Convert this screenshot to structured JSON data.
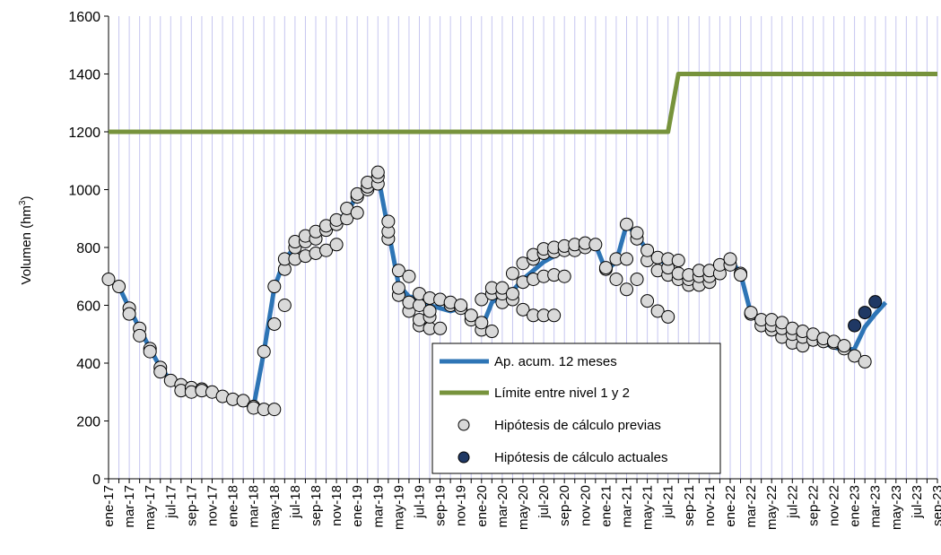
{
  "chart_data": {
    "type": "line",
    "ylabel": "Volumen (hm³)",
    "ylabel_parts": {
      "main": "Volumen (hm",
      "sup": "3",
      "close": ")"
    },
    "ylim": [
      0,
      1600
    ],
    "yticks": [
      0,
      200,
      400,
      600,
      800,
      1000,
      1200,
      1400,
      1600
    ],
    "grid": {
      "vertical": "monthly",
      "horizontal": false
    },
    "legend_position": "center-bottom",
    "months": [
      "ene-17",
      "feb-17",
      "mar-17",
      "abr-17",
      "may-17",
      "jun-17",
      "jul-17",
      "ago-17",
      "sep-17",
      "oct-17",
      "nov-17",
      "dic-17",
      "ene-18",
      "feb-18",
      "mar-18",
      "abr-18",
      "may-18",
      "jun-18",
      "jul-18",
      "ago-18",
      "sep-18",
      "oct-18",
      "nov-18",
      "dic-18",
      "ene-19",
      "feb-19",
      "mar-19",
      "abr-19",
      "may-19",
      "jun-19",
      "jul-19",
      "ago-19",
      "sep-19",
      "oct-19",
      "nov-19",
      "dic-19",
      "ene-20",
      "feb-20",
      "mar-20",
      "abr-20",
      "may-20",
      "jun-20",
      "jul-20",
      "ago-20",
      "sep-20",
      "oct-20",
      "nov-20",
      "dic-20",
      "ene-21",
      "feb-21",
      "mar-21",
      "abr-21",
      "may-21",
      "jun-21",
      "jul-21",
      "ago-21",
      "sep-21",
      "oct-21",
      "nov-21",
      "dic-21",
      "ene-22",
      "feb-22",
      "mar-22",
      "abr-22",
      "may-22",
      "jun-22",
      "jul-22",
      "ago-22",
      "sep-22",
      "oct-22",
      "nov-22",
      "dic-22",
      "ene-23",
      "feb-23",
      "mar-23",
      "abr-23",
      "may-23",
      "jun-23",
      "jul-23",
      "ago-23",
      "sep-23"
    ],
    "x_tick_labels": [
      "ene-17",
      "mar-17",
      "may-17",
      "jul-17",
      "sep-17",
      "nov-17",
      "ene-18",
      "mar-18",
      "may-18",
      "jul-18",
      "sep-18",
      "nov-18",
      "ene-19",
      "mar-19",
      "may-19",
      "jul-19",
      "sep-19",
      "nov-19",
      "ene-20",
      "mar-20",
      "may-20",
      "jul-20",
      "sep-20",
      "nov-20",
      "ene-21",
      "mar-21",
      "may-21",
      "jul-21",
      "sep-21",
      "nov-21",
      "ene-22",
      "mar-22",
      "may-22",
      "jul-22",
      "sep-22",
      "nov-22",
      "ene-23",
      "mar-23",
      "may-23",
      "jul-23",
      "sep-23"
    ],
    "series": [
      {
        "name": "Ap. acum. 12 meses",
        "kind": "line",
        "color": "#2E75B6",
        "x": [
          "ene-17",
          "feb-17",
          "mar-17",
          "abr-17",
          "may-17",
          "jun-17",
          "jul-17",
          "ago-17",
          "sep-17",
          "oct-17",
          "nov-17",
          "dic-17",
          "ene-18",
          "feb-18",
          "mar-18",
          "abr-18",
          "may-18",
          "jun-18",
          "jul-18",
          "ago-18",
          "sep-18",
          "oct-18",
          "nov-18",
          "dic-18",
          "ene-19",
          "feb-19",
          "mar-19",
          "abr-19",
          "may-19",
          "jun-19",
          "jul-19",
          "ago-19",
          "sep-19",
          "oct-19",
          "nov-19",
          "dic-19",
          "ene-20",
          "feb-20",
          "mar-20",
          "abr-20",
          "may-20",
          "jun-20",
          "jul-20",
          "ago-20",
          "sep-20",
          "oct-20",
          "nov-20",
          "dic-20",
          "ene-21",
          "feb-21",
          "mar-21",
          "abr-21",
          "may-21",
          "jun-21",
          "jul-21",
          "ago-21",
          "sep-21",
          "oct-21",
          "nov-21",
          "dic-21",
          "ene-22",
          "feb-22",
          "mar-22",
          "abr-22",
          "may-22",
          "jun-22",
          "jul-22",
          "ago-22",
          "sep-22",
          "oct-22",
          "nov-22",
          "dic-22",
          "ene-23",
          "feb-23",
          "mar-23",
          "abr-23"
        ],
        "values": [
          690,
          665,
          590,
          520,
          450,
          385,
          340,
          320,
          310,
          305,
          300,
          285,
          270,
          260,
          250,
          440,
          660,
          760,
          800,
          830,
          850,
          870,
          890,
          920,
          980,
          1010,
          1050,
          860,
          670,
          630,
          625,
          600,
          590,
          580,
          590,
          560,
          520,
          610,
          640,
          650,
          690,
          720,
          750,
          770,
          790,
          800,
          810,
          810,
          720,
          750,
          880,
          840,
          790,
          760,
          740,
          700,
          690,
          700,
          720,
          730,
          760,
          710,
          570,
          540,
          520,
          510,
          500,
          495,
          480,
          470,
          455,
          445,
          450,
          525,
          570,
          610
        ]
      },
      {
        "name": "Límite entre nivel 1 y 2",
        "kind": "line",
        "color": "#77933C",
        "x": [
          "ene-17",
          "jul-21",
          "ago-21",
          "sep-23"
        ],
        "values": [
          1200,
          1200,
          1400,
          1400
        ]
      },
      {
        "name": "Hipótesis de cálculo previas",
        "kind": "markers",
        "color": "#D9D9D9",
        "points": [
          [
            "ene-17",
            690
          ],
          [
            "feb-17",
            665
          ],
          [
            "mar-17",
            590
          ],
          [
            "mar-17",
            570
          ],
          [
            "abr-17",
            520
          ],
          [
            "abr-17",
            495
          ],
          [
            "may-17",
            450
          ],
          [
            "may-17",
            440
          ],
          [
            "jun-17",
            385
          ],
          [
            "jun-17",
            370
          ],
          [
            "jul-17",
            340
          ],
          [
            "ago-17",
            325
          ],
          [
            "ago-17",
            305
          ],
          [
            "sep-17",
            315
          ],
          [
            "sep-17",
            300
          ],
          [
            "oct-17",
            310
          ],
          [
            "oct-17",
            305
          ],
          [
            "nov-17",
            300
          ],
          [
            "dic-17",
            285
          ],
          [
            "ene-18",
            275
          ],
          [
            "feb-18",
            270
          ],
          [
            "mar-18",
            250
          ],
          [
            "mar-18",
            245
          ],
          [
            "abr-18",
            240
          ],
          [
            "abr-18",
            440
          ],
          [
            "may-18",
            240
          ],
          [
            "may-18",
            535
          ],
          [
            "may-18",
            665
          ],
          [
            "jun-18",
            600
          ],
          [
            "jun-18",
            725
          ],
          [
            "jun-18",
            760
          ],
          [
            "jul-18",
            760
          ],
          [
            "jul-18",
            800
          ],
          [
            "jul-18",
            820
          ],
          [
            "ago-18",
            770
          ],
          [
            "ago-18",
            820
          ],
          [
            "ago-18",
            840
          ],
          [
            "sep-18",
            780
          ],
          [
            "sep-18",
            830
          ],
          [
            "sep-18",
            855
          ],
          [
            "oct-18",
            790
          ],
          [
            "oct-18",
            860
          ],
          [
            "oct-18",
            875
          ],
          [
            "nov-18",
            810
          ],
          [
            "nov-18",
            880
          ],
          [
            "nov-18",
            895
          ],
          [
            "dic-18",
            900
          ],
          [
            "dic-18",
            935
          ],
          [
            "ene-19",
            920
          ],
          [
            "ene-19",
            975
          ],
          [
            "ene-19",
            985
          ],
          [
            "feb-19",
            1000
          ],
          [
            "feb-19",
            1010
          ],
          [
            "feb-19",
            1025
          ],
          [
            "mar-19",
            1020
          ],
          [
            "mar-19",
            1045
          ],
          [
            "mar-19",
            1060
          ],
          [
            "abr-19",
            830
          ],
          [
            "abr-19",
            855
          ],
          [
            "abr-19",
            890
          ],
          [
            "may-19",
            635
          ],
          [
            "may-19",
            660
          ],
          [
            "may-19",
            720
          ],
          [
            "jun-19",
            580
          ],
          [
            "jun-19",
            610
          ],
          [
            "jun-19",
            700
          ],
          [
            "jul-19",
            530
          ],
          [
            "jul-19",
            550
          ],
          [
            "jul-19",
            600
          ],
          [
            "jul-19",
            640
          ],
          [
            "ago-19",
            520
          ],
          [
            "ago-19",
            560
          ],
          [
            "ago-19",
            580
          ],
          [
            "ago-19",
            625
          ],
          [
            "sep-19",
            520
          ],
          [
            "sep-19",
            620
          ],
          [
            "oct-19",
            600
          ],
          [
            "oct-19",
            610
          ],
          [
            "nov-19",
            590
          ],
          [
            "nov-19",
            600
          ],
          [
            "dic-19",
            550
          ],
          [
            "dic-19",
            565
          ],
          [
            "ene-20",
            515
          ],
          [
            "ene-20",
            540
          ],
          [
            "ene-20",
            620
          ],
          [
            "feb-20",
            510
          ],
          [
            "feb-20",
            640
          ],
          [
            "feb-20",
            660
          ],
          [
            "mar-20",
            610
          ],
          [
            "mar-20",
            640
          ],
          [
            "mar-20",
            660
          ],
          [
            "abr-20",
            620
          ],
          [
            "abr-20",
            640
          ],
          [
            "abr-20",
            710
          ],
          [
            "may-20",
            585
          ],
          [
            "may-20",
            680
          ],
          [
            "may-20",
            745
          ],
          [
            "jun-20",
            565
          ],
          [
            "jun-20",
            690
          ],
          [
            "jun-20",
            760
          ],
          [
            "jun-20",
            775
          ],
          [
            "jul-20",
            565
          ],
          [
            "jul-20",
            700
          ],
          [
            "jul-20",
            780
          ],
          [
            "jul-20",
            795
          ],
          [
            "ago-20",
            565
          ],
          [
            "ago-20",
            705
          ],
          [
            "ago-20",
            785
          ],
          [
            "ago-20",
            800
          ],
          [
            "sep-20",
            700
          ],
          [
            "sep-20",
            790
          ],
          [
            "sep-20",
            805
          ],
          [
            "oct-20",
            790
          ],
          [
            "oct-20",
            810
          ],
          [
            "nov-20",
            800
          ],
          [
            "nov-20",
            815
          ],
          [
            "dic-20",
            810
          ],
          [
            "ene-21",
            725
          ],
          [
            "ene-21",
            730
          ],
          [
            "feb-21",
            690
          ],
          [
            "feb-21",
            760
          ],
          [
            "mar-21",
            655
          ],
          [
            "mar-21",
            760
          ],
          [
            "mar-21",
            880
          ],
          [
            "abr-21",
            690
          ],
          [
            "abr-21",
            830
          ],
          [
            "abr-21",
            850
          ],
          [
            "may-21",
            615
          ],
          [
            "may-21",
            755
          ],
          [
            "may-21",
            790
          ],
          [
            "jun-21",
            580
          ],
          [
            "jun-21",
            720
          ],
          [
            "jun-21",
            765
          ],
          [
            "jul-21",
            560
          ],
          [
            "jul-21",
            705
          ],
          [
            "jul-21",
            730
          ],
          [
            "jul-21",
            760
          ],
          [
            "ago-21",
            690
          ],
          [
            "ago-21",
            710
          ],
          [
            "ago-21",
            755
          ],
          [
            "sep-21",
            670
          ],
          [
            "sep-21",
            690
          ],
          [
            "sep-21",
            705
          ],
          [
            "oct-21",
            670
          ],
          [
            "oct-21",
            700
          ],
          [
            "oct-21",
            720
          ],
          [
            "nov-21",
            680
          ],
          [
            "nov-21",
            700
          ],
          [
            "nov-21",
            720
          ],
          [
            "dic-21",
            710
          ],
          [
            "dic-21",
            740
          ],
          [
            "ene-22",
            740
          ],
          [
            "ene-22",
            760
          ],
          [
            "feb-22",
            710
          ],
          [
            "feb-22",
            705
          ],
          [
            "mar-22",
            570
          ],
          [
            "mar-22",
            575
          ],
          [
            "abr-22",
            530
          ],
          [
            "abr-22",
            550
          ],
          [
            "may-22",
            515
          ],
          [
            "may-22",
            530
          ],
          [
            "may-22",
            550
          ],
          [
            "jun-22",
            490
          ],
          [
            "jun-22",
            520
          ],
          [
            "jun-22",
            540
          ],
          [
            "jul-22",
            470
          ],
          [
            "jul-22",
            500
          ],
          [
            "jul-22",
            520
          ],
          [
            "ago-22",
            460
          ],
          [
            "ago-22",
            490
          ],
          [
            "ago-22",
            510
          ],
          [
            "sep-22",
            480
          ],
          [
            "sep-22",
            500
          ],
          [
            "oct-22",
            475
          ],
          [
            "oct-22",
            485
          ],
          [
            "nov-22",
            470
          ],
          [
            "nov-22",
            475
          ],
          [
            "dic-22",
            450
          ],
          [
            "dic-22",
            460
          ],
          [
            "ene-23",
            425
          ],
          [
            "feb-23",
            405
          ]
        ]
      },
      {
        "name": "Hipótesis de cálculo actuales",
        "kind": "markers",
        "color": "#1F3864",
        "points": [
          [
            "ene-23",
            530
          ],
          [
            "feb-23",
            575
          ],
          [
            "mar-23",
            612
          ]
        ]
      }
    ]
  }
}
